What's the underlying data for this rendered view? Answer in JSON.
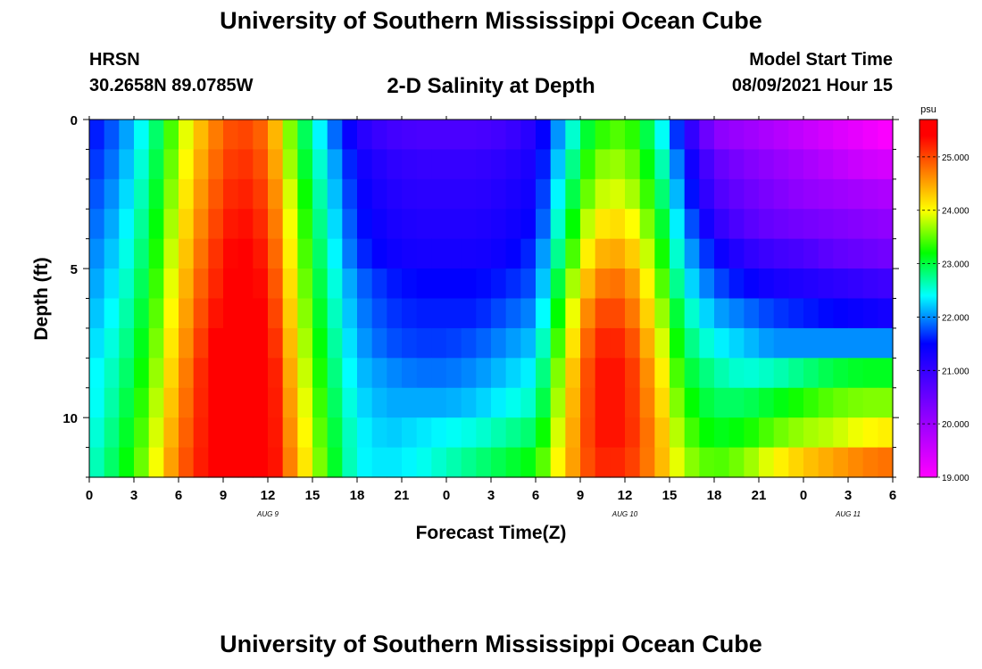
{
  "header": {
    "title": "University of Southern Mississippi Ocean Cube",
    "station_name": "HRSN",
    "station_coords": "30.2658N  89.0785W",
    "subtitle": "2-D Salinity at Depth",
    "model_start_label": "Model Start Time",
    "model_start_time": "08/09/2021 Hour 15"
  },
  "footer": {
    "title": "University of Southern Mississippi Ocean Cube"
  },
  "colormap": {
    "stops": [
      "#ff00ff",
      "#7f00ff",
      "#0000ff",
      "#00ffff",
      "#00ff00",
      "#ffff00",
      "#ff8000",
      "#ff0000"
    ],
    "stop_values": [
      19.0,
      20.3,
      21.5,
      22.4,
      23.2,
      24.0,
      24.7,
      25.4
    ]
  },
  "chart_data": {
    "type": "heatmap",
    "title": "2-D Salinity at Depth",
    "xlabel": "Forecast Time(Z)",
    "ylabel": "Depth (ft)",
    "x_ticks": [
      "0",
      "3",
      "6",
      "9",
      "12",
      "15",
      "18",
      "21",
      "0",
      "3",
      "6",
      "9",
      "12",
      "15",
      "18",
      "21",
      "0",
      "3",
      "6"
    ],
    "x_range_hours": [
      0,
      54
    ],
    "date_labels": [
      {
        "text": "AUG 9",
        "hour": 12
      },
      {
        "text": "AUG 10",
        "hour": 36
      },
      {
        "text": "AUG 11",
        "hour": 51
      }
    ],
    "y_ticks": [
      "0",
      "5",
      "10"
    ],
    "ylim": [
      0,
      12
    ],
    "colorbar": {
      "unit": "psu",
      "min": 19.0,
      "max": 25.7,
      "tick_labels": [
        "25.000",
        "24.000",
        "23.000",
        "22.000",
        "21.000",
        "20.000",
        "19.000"
      ],
      "tick_values": [
        25.0,
        24.0,
        23.0,
        22.0,
        21.0,
        20.0,
        19.0
      ]
    },
    "depth_rows_ft": [
      0.5,
      1.5,
      2.5,
      3.5,
      4.5,
      5.5,
      6.5,
      7.5,
      8.5,
      9.5,
      10.5,
      11.5
    ],
    "key_hours": [
      0,
      2,
      4,
      6,
      8,
      10,
      12,
      14,
      16,
      18,
      20,
      22,
      24,
      26,
      28,
      30,
      32,
      34,
      36,
      38,
      40,
      42,
      44,
      46,
      48,
      50,
      52,
      54
    ],
    "salinity_psu": [
      [
        21.5,
        21.9,
        22.6,
        23.7,
        24.6,
        25.1,
        24.8,
        23.2,
        22.1,
        21.2,
        20.9,
        20.8,
        20.8,
        20.8,
        20.9,
        21.2,
        22.3,
        23.3,
        23.5,
        22.8,
        21.3,
        20.2,
        20.0,
        19.8,
        19.6,
        19.4,
        19.2,
        19.0
      ],
      [
        21.6,
        22.0,
        22.7,
        23.8,
        24.7,
        25.2,
        24.9,
        23.3,
        22.3,
        21.4,
        21.1,
        21.0,
        21.0,
        21.0,
        21.1,
        21.3,
        22.5,
        23.6,
        23.7,
        23.0,
        21.6,
        20.6,
        20.3,
        20.1,
        19.9,
        19.7,
        19.5,
        19.4
      ],
      [
        21.7,
        22.1,
        22.8,
        23.9,
        24.8,
        25.3,
        25.0,
        23.5,
        22.4,
        21.5,
        21.2,
        21.1,
        21.1,
        21.1,
        21.2,
        21.4,
        22.7,
        23.8,
        23.9,
        23.2,
        21.8,
        20.8,
        20.5,
        20.3,
        20.1,
        20.0,
        19.9,
        19.8
      ],
      [
        21.8,
        22.2,
        22.9,
        24.0,
        24.9,
        25.4,
        25.1,
        23.6,
        22.5,
        21.6,
        21.3,
        21.2,
        21.2,
        21.2,
        21.3,
        21.5,
        22.9,
        24.1,
        24.2,
        23.4,
        22.0,
        21.1,
        20.7,
        20.5,
        20.4,
        20.3,
        20.2,
        20.1
      ],
      [
        21.9,
        22.3,
        23.0,
        24.1,
        25.0,
        25.5,
        25.2,
        23.7,
        22.6,
        21.7,
        21.4,
        21.3,
        21.3,
        21.3,
        21.4,
        21.7,
        23.1,
        24.4,
        24.5,
        23.6,
        22.2,
        21.5,
        21.1,
        20.9,
        20.8,
        20.6,
        20.5,
        20.4
      ],
      [
        22.0,
        22.4,
        23.1,
        24.2,
        25.1,
        25.5,
        25.3,
        23.8,
        22.7,
        21.9,
        21.6,
        21.5,
        21.5,
        21.5,
        21.6,
        21.8,
        23.4,
        24.7,
        24.8,
        23.8,
        22.4,
        21.8,
        21.5,
        21.3,
        21.2,
        21.1,
        21.0,
        20.9
      ],
      [
        22.1,
        22.5,
        23.2,
        24.3,
        25.2,
        25.6,
        25.4,
        23.9,
        22.8,
        22.0,
        21.7,
        21.6,
        21.6,
        21.6,
        21.8,
        22.0,
        23.6,
        25.0,
        25.0,
        24.0,
        22.7,
        22.1,
        21.9,
        21.7,
        21.6,
        21.5,
        21.4,
        21.3
      ],
      [
        22.2,
        22.6,
        23.3,
        24.4,
        25.3,
        25.7,
        25.5,
        24.0,
        22.9,
        22.1,
        21.8,
        21.7,
        21.7,
        21.8,
        22.0,
        22.2,
        23.8,
        25.2,
        25.2,
        24.2,
        22.9,
        22.4,
        22.2,
        22.0,
        22.0,
        22.0,
        22.0,
        22.0
      ],
      [
        22.3,
        22.7,
        23.4,
        24.5,
        25.4,
        25.7,
        25.6,
        24.1,
        23.0,
        22.2,
        22.0,
        21.9,
        21.9,
        22.0,
        22.2,
        22.4,
        24.0,
        25.3,
        25.3,
        24.4,
        23.1,
        22.7,
        22.5,
        22.6,
        22.8,
        23.0,
        23.1,
        23.1
      ],
      [
        22.3,
        22.8,
        23.5,
        24.6,
        25.4,
        25.7,
        25.6,
        24.2,
        23.1,
        22.3,
        22.1,
        22.1,
        22.1,
        22.2,
        22.4,
        22.6,
        24.1,
        25.3,
        25.3,
        24.5,
        23.3,
        22.9,
        22.9,
        23.1,
        23.3,
        23.5,
        23.6,
        23.6
      ],
      [
        22.4,
        22.9,
        23.6,
        24.7,
        25.4,
        25.7,
        25.6,
        24.3,
        23.2,
        22.4,
        22.2,
        22.3,
        22.4,
        22.5,
        22.7,
        22.9,
        24.2,
        25.3,
        25.3,
        24.6,
        23.5,
        23.1,
        23.2,
        23.5,
        23.7,
        23.8,
        24.0,
        24.1
      ],
      [
        22.5,
        23.0,
        23.7,
        24.8,
        25.4,
        25.7,
        25.6,
        24.4,
        23.3,
        22.4,
        22.3,
        22.4,
        22.6,
        22.8,
        23.0,
        23.2,
        24.3,
        25.2,
        25.2,
        24.6,
        23.7,
        23.4,
        23.6,
        24.0,
        24.3,
        24.5,
        24.7,
        24.8
      ]
    ]
  }
}
